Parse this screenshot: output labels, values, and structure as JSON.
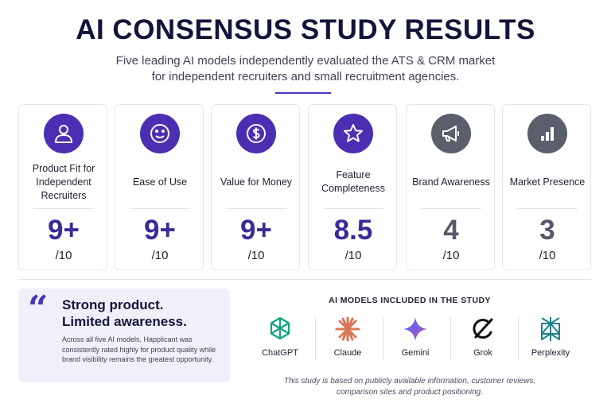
{
  "header": {
    "title": "AI CONSENSUS STUDY RESULTS",
    "subtitle_line1": "Five leading AI models independently evaluated the ATS & CRM market",
    "subtitle_line2": "for independent recruiters and small recruitment agencies."
  },
  "categories": [
    {
      "icon": "user-icon",
      "label": "Product Fit for Independent Recruiters",
      "score": "9+",
      "scale": "/10",
      "color": "#4a2fb3",
      "score_color": "#3b2a9a"
    },
    {
      "icon": "smiley-icon",
      "label": "Ease of Use",
      "score": "9+",
      "scale": "/10",
      "color": "#4a2fb3",
      "score_color": "#3b2a9a"
    },
    {
      "icon": "dollar-icon",
      "label": "Value for Money",
      "score": "9+",
      "scale": "/10",
      "color": "#4a2fb3",
      "score_color": "#3b2a9a"
    },
    {
      "icon": "star-icon",
      "label": "Feature Completeness",
      "score": "8.5",
      "scale": "/10",
      "color": "#4a2fb3",
      "score_color": "#3b2a9a"
    },
    {
      "icon": "megaphone-icon",
      "label": "Brand Awareness",
      "score": "4",
      "scale": "/10",
      "color": "#5b5e6b",
      "score_color": "#55586a"
    },
    {
      "icon": "bar-chart-icon",
      "label": "Market Presence",
      "score": "3",
      "scale": "/10",
      "color": "#5b5e6b",
      "score_color": "#55586a"
    }
  ],
  "quote": {
    "mark": "“",
    "headline_line1": "Strong product.",
    "headline_line2": "Limited awareness.",
    "body": "Across all five AI models, Happlicant was consistently rated highly for product quality while brand visibility remains the greatest opportunity."
  },
  "models": {
    "title": "AI MODELS INCLUDED IN THE STUDY",
    "items": [
      {
        "name": "ChatGPT",
        "icon": "chatgpt-logo-icon",
        "color": "#10a37f"
      },
      {
        "name": "Claude",
        "icon": "claude-logo-icon",
        "color": "#d97757"
      },
      {
        "name": "Gemini",
        "icon": "gemini-logo-icon",
        "color": "#6b5cd6"
      },
      {
        "name": "Grok",
        "icon": "grok-logo-icon",
        "color": "#111111"
      },
      {
        "name": "Perplexity",
        "icon": "perplexity-logo-icon",
        "color": "#20808d"
      }
    ]
  },
  "footnote": {
    "line1": "This study is based on publicly available information, customer reviews,",
    "line2": "comparison sites and product positioning."
  }
}
